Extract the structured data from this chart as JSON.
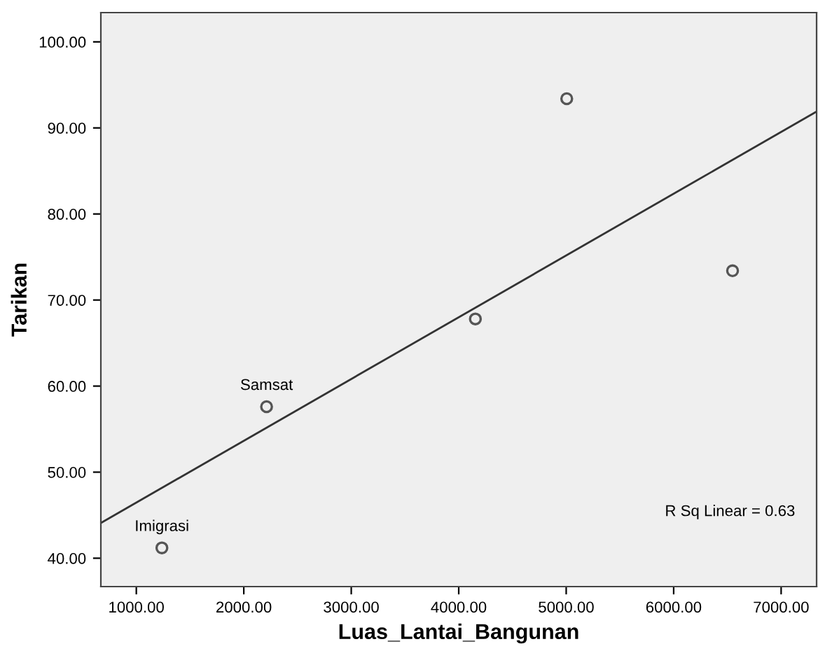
{
  "chart_data": {
    "type": "scatter",
    "xlabel": "Luas_Lantai_Bangunan",
    "ylabel": "Tarikan",
    "xlim": [
      670,
      7330
    ],
    "ylim": [
      36.7,
      103.4
    ],
    "xticks": [
      {
        "value": 1000,
        "label": "1000.00"
      },
      {
        "value": 2000,
        "label": "2000.00"
      },
      {
        "value": 3000,
        "label": "3000.00"
      },
      {
        "value": 4000,
        "label": "4000.00"
      },
      {
        "value": 5000,
        "label": "5000.00"
      },
      {
        "value": 6000,
        "label": "6000.00"
      },
      {
        "value": 7000,
        "label": "7000.00"
      }
    ],
    "yticks": [
      {
        "value": 40,
        "label": "40.00"
      },
      {
        "value": 50,
        "label": "50.00"
      },
      {
        "value": 60,
        "label": "60.00"
      },
      {
        "value": 70,
        "label": "70.00"
      },
      {
        "value": 80,
        "label": "80.00"
      },
      {
        "value": 90,
        "label": "90.00"
      },
      {
        "value": 100,
        "label": "100.00"
      }
    ],
    "series": [
      {
        "color": "#555555",
        "marker": "circle",
        "x": [
          1238,
          2212,
          4155,
          5005,
          6548
        ],
        "values": [
          41.2,
          57.6,
          67.8,
          93.4,
          73.4
        ]
      },
      {
        "type": "line",
        "color": "#333333",
        "line_style": "solid",
        "marker": "none",
        "x": [
          670,
          7330
        ],
        "values": [
          44.1,
          91.9
        ]
      }
    ],
    "annotations": [
      {
        "text": "Imigrasi",
        "x": 1238,
        "y": 41.2
      },
      {
        "text": "Samsat",
        "x": 2212,
        "y": 57.6
      },
      "R Sq Linear = 0.63"
    ],
    "grid": false,
    "legend": false
  }
}
